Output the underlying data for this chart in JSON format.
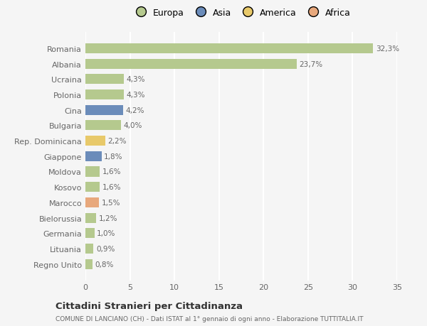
{
  "categories": [
    "Regno Unito",
    "Lituania",
    "Germania",
    "Bielorussia",
    "Marocco",
    "Kosovo",
    "Moldova",
    "Giappone",
    "Rep. Dominicana",
    "Bulgaria",
    "Cina",
    "Polonia",
    "Ucraina",
    "Albania",
    "Romania"
  ],
  "values": [
    0.8,
    0.9,
    1.0,
    1.2,
    1.5,
    1.6,
    1.6,
    1.8,
    2.2,
    4.0,
    4.2,
    4.3,
    4.3,
    23.7,
    32.3
  ],
  "labels": [
    "0,8%",
    "0,9%",
    "1,0%",
    "1,2%",
    "1,5%",
    "1,6%",
    "1,6%",
    "1,8%",
    "2,2%",
    "4,0%",
    "4,2%",
    "4,3%",
    "4,3%",
    "23,7%",
    "32,3%"
  ],
  "colors": [
    "#b5c98e",
    "#b5c98e",
    "#b5c98e",
    "#b5c98e",
    "#e8a87c",
    "#b5c98e",
    "#b5c98e",
    "#6b8cba",
    "#e8c96a",
    "#b5c98e",
    "#6b8cba",
    "#b5c98e",
    "#b5c98e",
    "#b5c98e",
    "#b5c98e"
  ],
  "legend_labels": [
    "Europa",
    "Asia",
    "America",
    "Africa"
  ],
  "legend_colors": [
    "#b5c98e",
    "#6b8cba",
    "#e8c96a",
    "#e8a87c"
  ],
  "title": "Cittadini Stranieri per Cittadinanza",
  "subtitle": "COMUNE DI LANCIANO (CH) - Dati ISTAT al 1° gennaio di ogni anno - Elaborazione TUTTITALIA.IT",
  "xlim": [
    0,
    35
  ],
  "xticks": [
    0,
    5,
    10,
    15,
    20,
    25,
    30,
    35
  ],
  "background_color": "#f5f5f5",
  "plot_bg_color": "#f5f5f5",
  "grid_color": "#ffffff",
  "bar_height": 0.65
}
